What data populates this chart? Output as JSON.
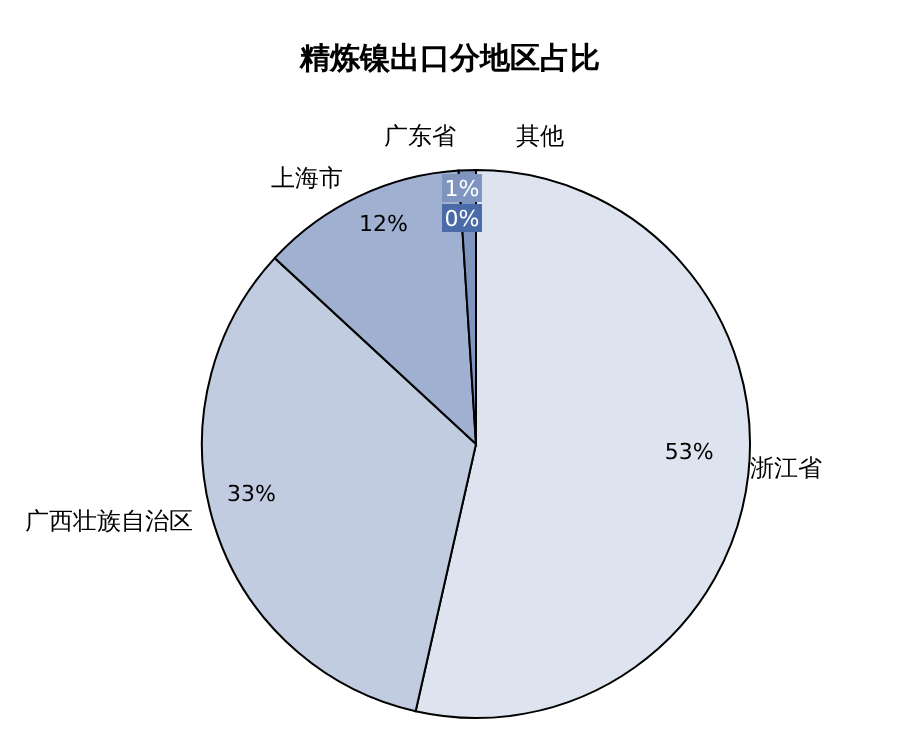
{
  "chart_data": {
    "type": "pie",
    "title": "精炼镍出口分地区占比",
    "categories": [
      "浙江省",
      "广西壮族自治区",
      "上海市",
      "广东省",
      "其他"
    ],
    "values": [
      53,
      33,
      12,
      1,
      0
    ],
    "value_labels": [
      "53%",
      "33%",
      "12%",
      "1%",
      "0%"
    ],
    "colors": [
      "#dde3ef",
      "#c2cce0",
      "#9fb0d0",
      "#7f95c0",
      "#4a6aa8"
    ]
  }
}
